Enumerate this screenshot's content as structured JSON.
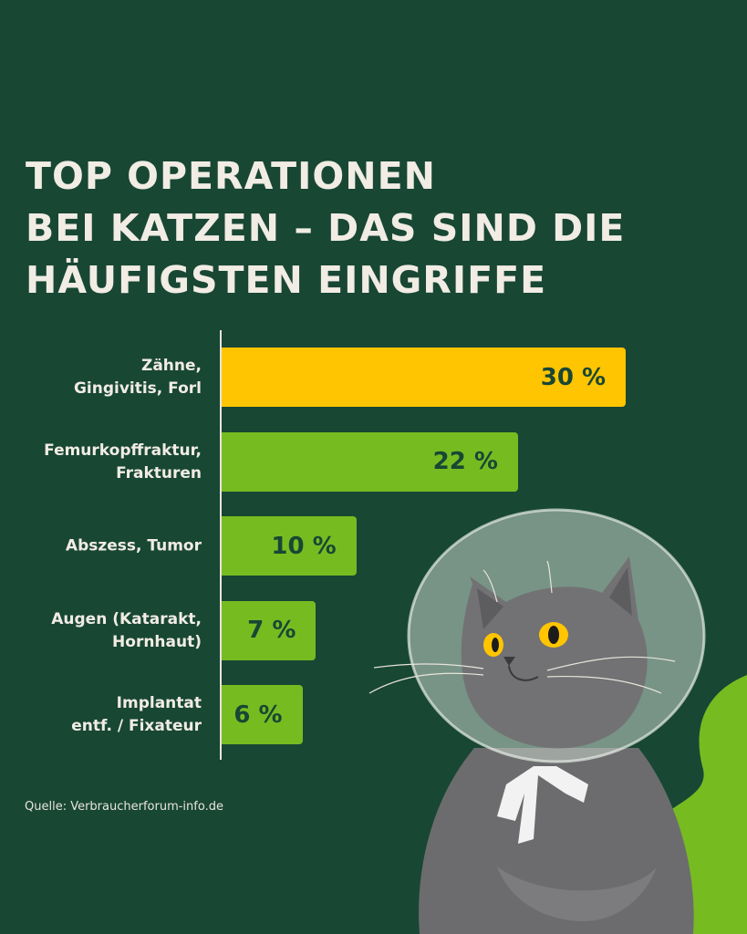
{
  "chart_data": {
    "type": "bar",
    "orientation": "horizontal",
    "title": "TOP OPERATIONEN BEI KATZEN – DAS SIND DIE HÄUFIGSTEN EINGRIFFE",
    "title_lines": [
      "TOP OPERATIONEN",
      "BEI KATZEN – DAS SIND DIE",
      "HÄUFIGSTEN EINGRIFFE"
    ],
    "categories": [
      [
        "Zähne,",
        "Gingivitis, Forl"
      ],
      [
        "Femurkopffraktur,",
        "Frakturen"
      ],
      [
        "Abszess, Tumor"
      ],
      [
        "Augen (Katarakt,",
        "Hornhaut)"
      ],
      [
        "Implantat",
        "entf. / Fixateur"
      ]
    ],
    "values": [
      30,
      22,
      10,
      7,
      6
    ],
    "value_labels": [
      "30 %",
      "22 %",
      "10 %",
      "7 %",
      "6 %"
    ],
    "unit": "%",
    "colors": [
      "#ffc500",
      "#76bc21",
      "#76bc21",
      "#76bc21",
      "#76bc21"
    ],
    "xlabel": "",
    "ylabel": "",
    "grid": false,
    "source": "Quelle: Verbraucherforum-info.de"
  },
  "colors": {
    "background": "#184734",
    "text": "#f1ece4",
    "highlight": "#ffc500",
    "bar": "#76bc21"
  }
}
